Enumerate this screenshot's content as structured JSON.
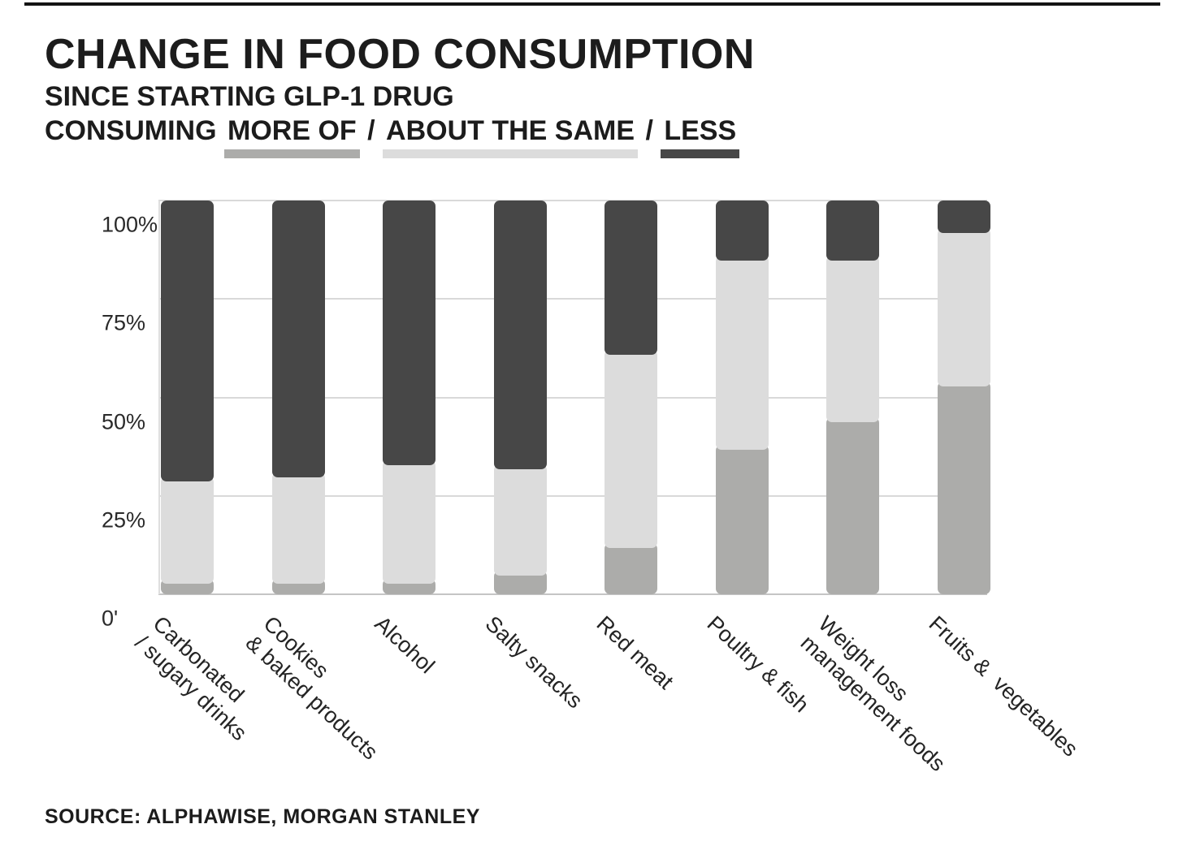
{
  "title": "CHANGE IN FOOD CONSUMPTION",
  "subtitle": "SINCE STARTING GLP-1 DRUG",
  "legend": {
    "prefix": "CONSUMING ",
    "more_label": "MORE OF",
    "separator1": " / ",
    "same_label": "ABOUT THE SAME",
    "separator2": " / ",
    "less_label": "LESS"
  },
  "colors": {
    "more": "#ACACAA",
    "same": "#DCDCDC",
    "less": "#474747",
    "grid": "#D9D9D9",
    "axis": "#C5C5C5"
  },
  "y_axis": {
    "ticks": [
      "100%",
      "75%",
      "50%",
      "25%",
      "0'"
    ]
  },
  "source": "SOURCE: ALPHAWISE, MORGAN STANLEY",
  "chart_data": {
    "type": "bar",
    "stacked": true,
    "percent_stacked": true,
    "title": "Change in food consumption since starting GLP-1 drug",
    "ylabel": "",
    "xlabel": "",
    "ylim": [
      0,
      100
    ],
    "grid": true,
    "legend_position": "top-inline-underline",
    "stack_order_top_to_bottom": [
      "Less",
      "About the same",
      "More of"
    ],
    "categories": [
      {
        "label": "Carbonated / sugary drinks",
        "lines": [
          "Carbonated",
          "/ sugary drinks"
        ]
      },
      {
        "label": "Cookies & baked products",
        "lines": [
          "Cookies",
          "& baked products"
        ]
      },
      {
        "label": "Alcohol",
        "lines": [
          "Alcohol"
        ]
      },
      {
        "label": "Salty snacks",
        "lines": [
          "Salty snacks"
        ]
      },
      {
        "label": "Red meat",
        "lines": [
          "Red meat"
        ]
      },
      {
        "label": "Poultry & fish",
        "lines": [
          "Poultry & fish"
        ]
      },
      {
        "label": "Weight loss management foods",
        "lines": [
          "Weight loss",
          "management foods"
        ]
      },
      {
        "label": "Fruits & vegetables",
        "lines": [
          "Fruits &  vegetables"
        ]
      }
    ],
    "series": [
      {
        "name": "Less",
        "color_key": "less",
        "values": [
          70,
          69,
          66,
          67,
          38,
          14,
          14,
          7
        ]
      },
      {
        "name": "About the same",
        "color_key": "same",
        "values": [
          26,
          27,
          30,
          27,
          49,
          48,
          41,
          39
        ]
      },
      {
        "name": "More of",
        "color_key": "more",
        "values": [
          4,
          4,
          4,
          6,
          13,
          38,
          45,
          54
        ]
      }
    ]
  }
}
